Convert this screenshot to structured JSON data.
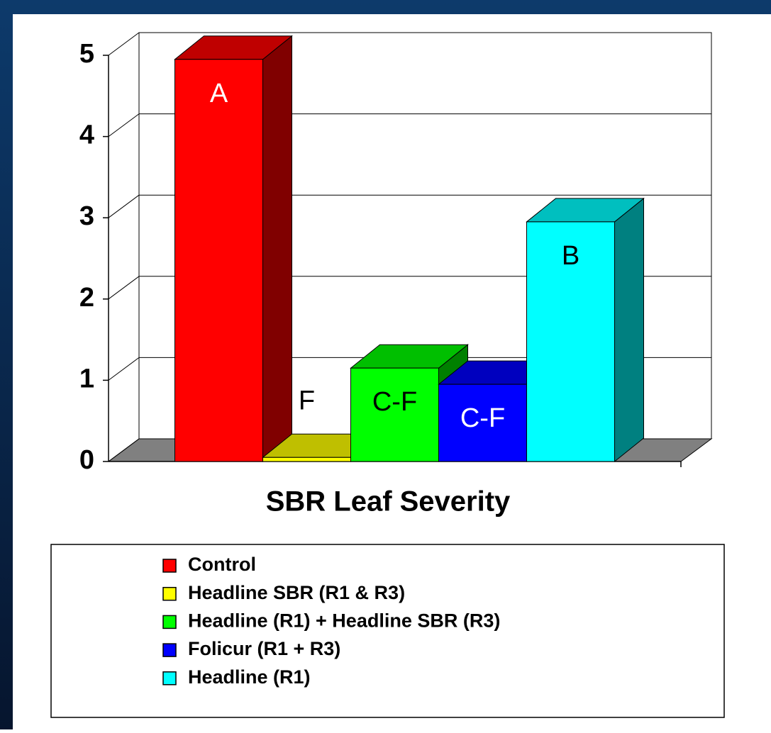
{
  "chart_data": {
    "type": "bar3d",
    "title": "SBR Leaf Severity",
    "categories": [
      "SBR Leaf Severity"
    ],
    "series": [
      {
        "name": "Control",
        "color": "#ff0000",
        "values": [
          4.95
        ],
        "value_labels": [
          "A"
        ]
      },
      {
        "name": "Headline SBR (R1 & R3)",
        "color": "#ffff00",
        "values": [
          0.05
        ],
        "value_labels": [
          "F"
        ]
      },
      {
        "name": "Headline (R1) + Headline SBR (R3)",
        "color": "#00ff00",
        "values": [
          1.15
        ],
        "value_labels": [
          "C-F"
        ]
      },
      {
        "name": "Folicur (R1 + R3)",
        "color": "#0000ff",
        "values": [
          0.95
        ],
        "value_labels": [
          "C-F"
        ]
      },
      {
        "name": "Headline (R1)",
        "color": "#00ffff",
        "values": [
          2.95
        ],
        "value_labels": [
          "B"
        ]
      }
    ],
    "ylim": [
      0,
      5
    ],
    "yticks": [
      0,
      1,
      2,
      3,
      4,
      5
    ],
    "grid": true,
    "legend": "bottom"
  }
}
